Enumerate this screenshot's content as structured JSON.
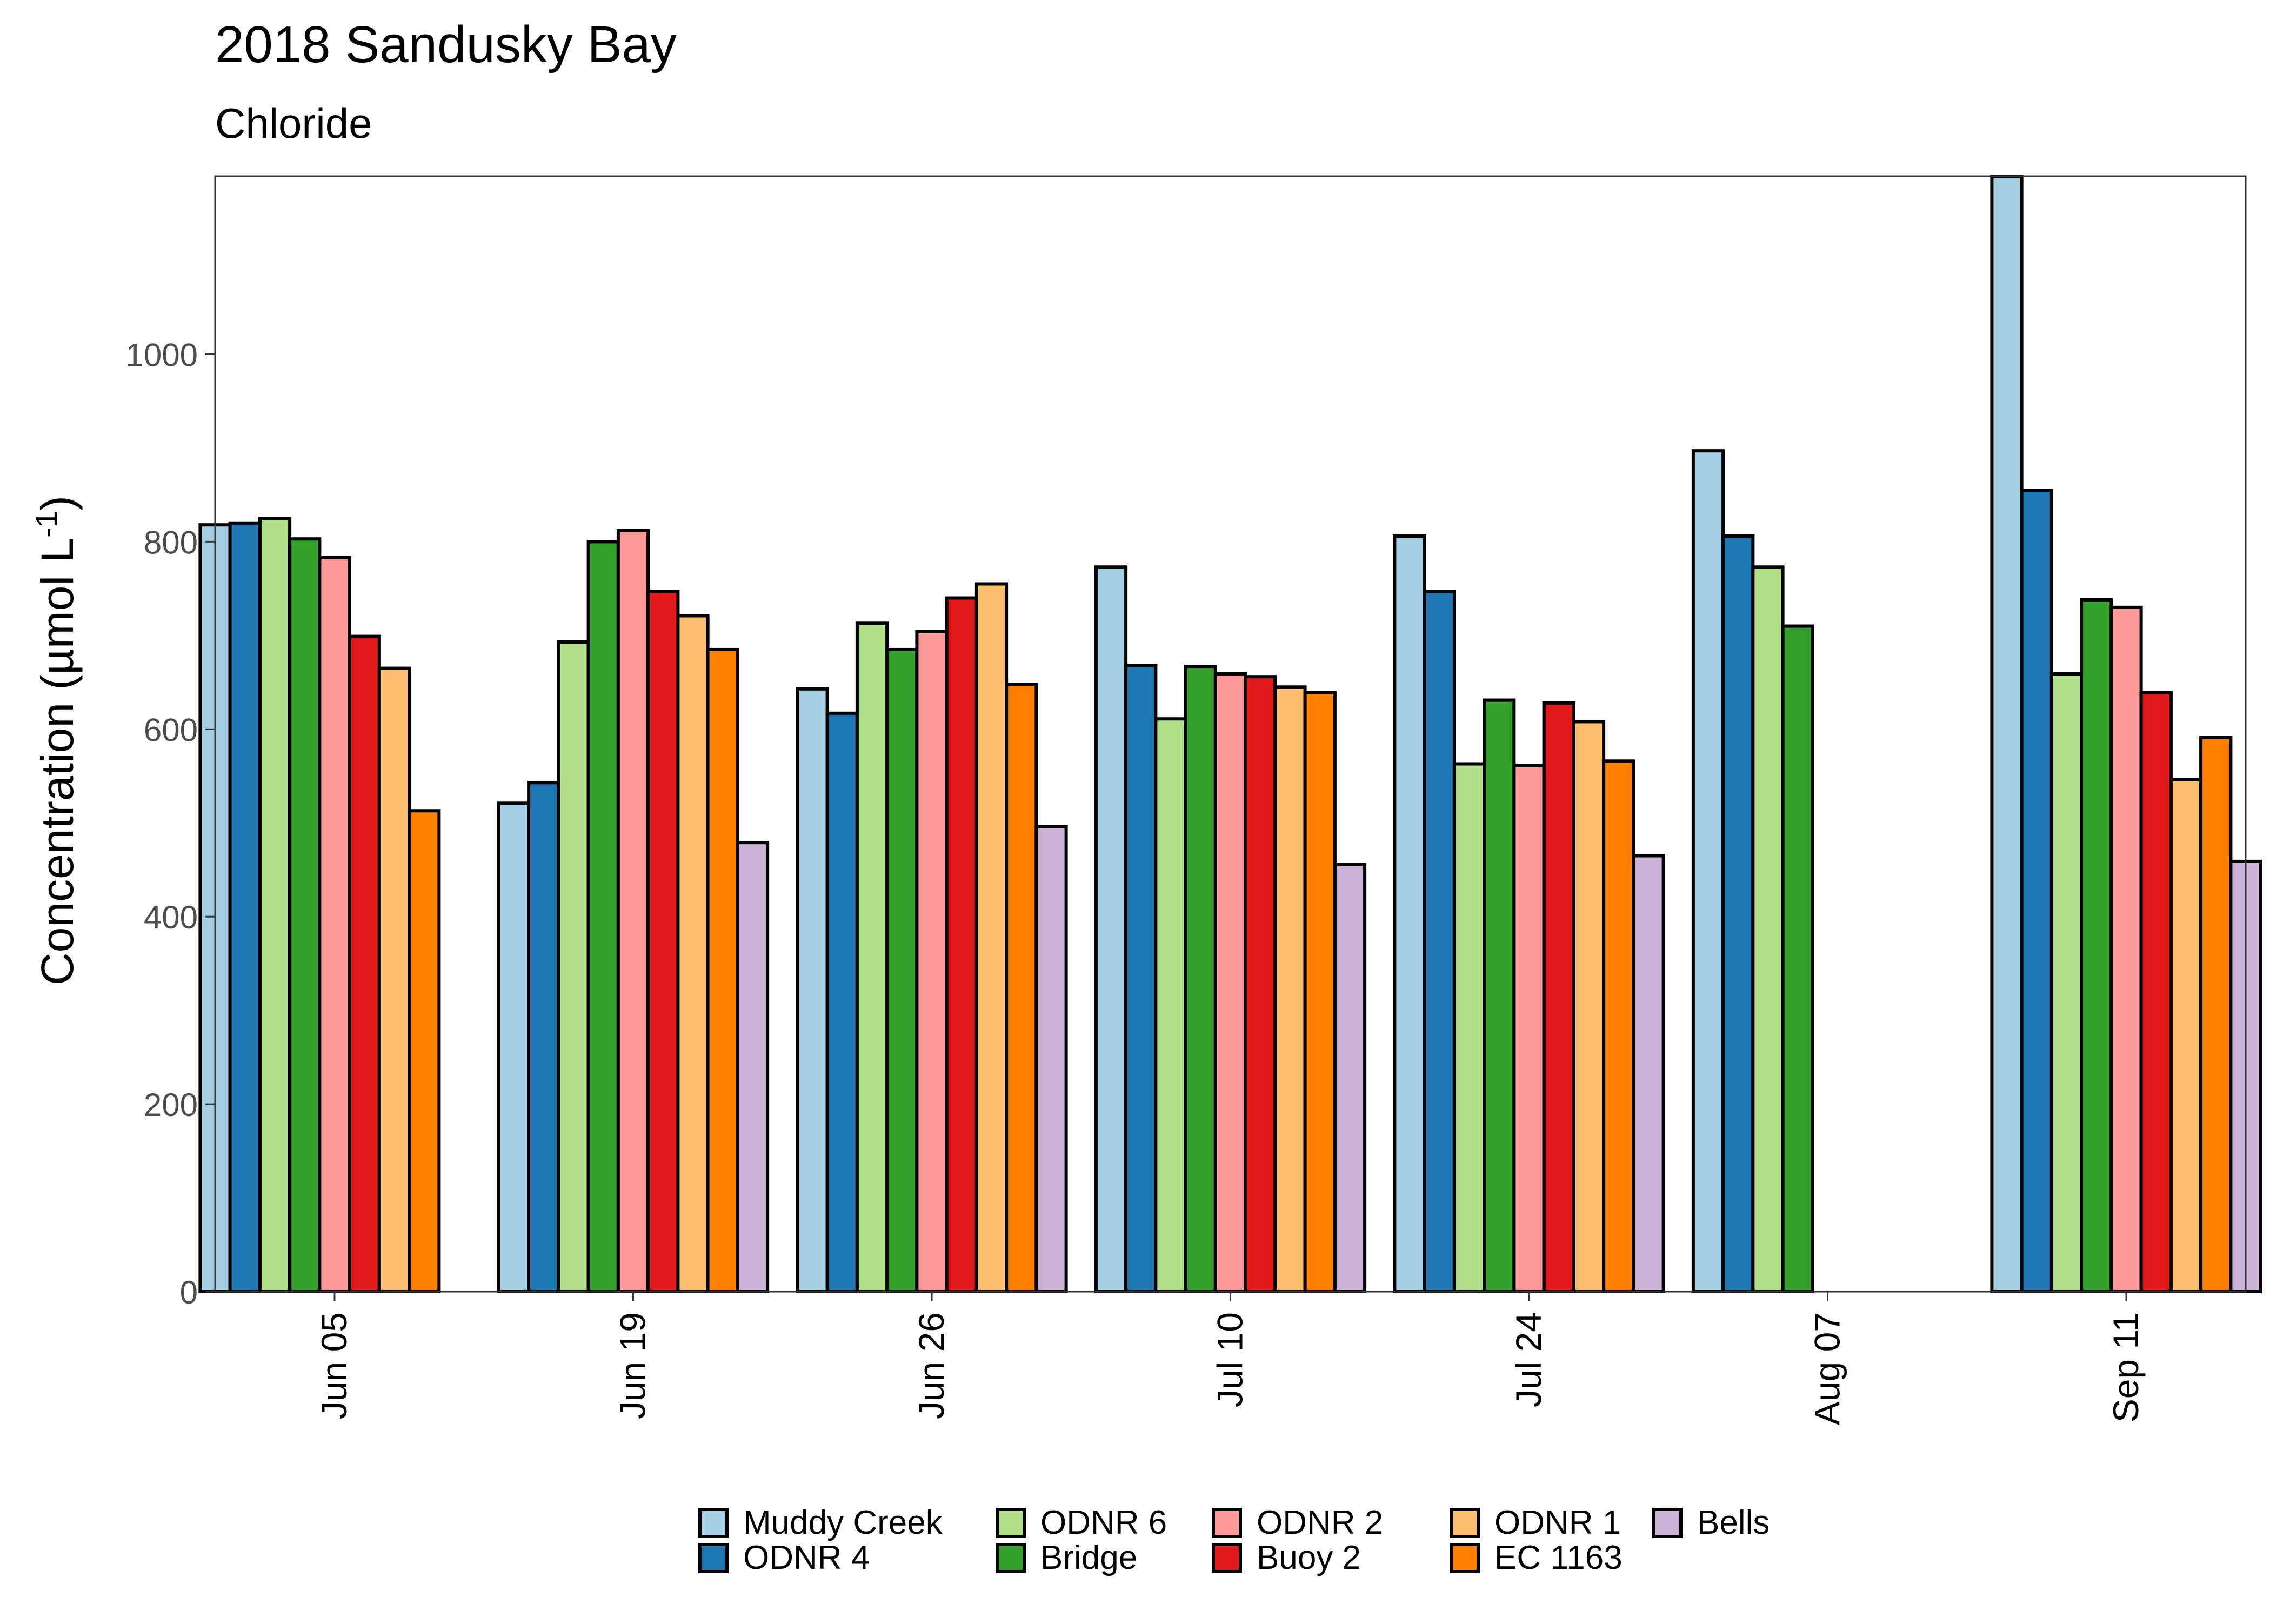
{
  "chart_data": {
    "type": "bar",
    "title": "2018 Sandusky Bay",
    "subtitle": "Chloride",
    "ylabel": "Concentration (µmol L",
    "ylabel_sup": "-1",
    "ylabel_end": ")",
    "xlabel": "",
    "ylim": [
      0,
      1190
    ],
    "yticks": [
      0,
      200,
      400,
      600,
      800,
      1000
    ],
    "grid": false,
    "legend_position": "bottom",
    "categories": [
      "Jun 05",
      "Jun 19",
      "Jun 26",
      "Jul 10",
      "Jul 24",
      "Aug 07",
      "Sep 11"
    ],
    "series": [
      {
        "name": "Muddy Creek",
        "color": "#A6CEE3",
        "values": [
          818,
          521,
          643,
          773,
          806,
          897,
          1190
        ]
      },
      {
        "name": "ODNR 4",
        "color": "#1F78B4",
        "values": [
          820,
          543,
          617,
          668,
          747,
          806,
          855
        ]
      },
      {
        "name": "ODNR 6",
        "color": "#B2DF8A",
        "values": [
          825,
          693,
          713,
          611,
          563,
          773,
          659
        ]
      },
      {
        "name": "Bridge",
        "color": "#33A02C",
        "values": [
          803,
          800,
          685,
          667,
          631,
          710,
          738
        ]
      },
      {
        "name": "ODNR 2",
        "color": "#FB9A99",
        "values": [
          783,
          812,
          704,
          659,
          561,
          null,
          730
        ]
      },
      {
        "name": "Buoy 2",
        "color": "#E31A1C",
        "values": [
          699,
          747,
          740,
          656,
          628,
          null,
          639
        ]
      },
      {
        "name": "ODNR 1",
        "color": "#FDBF6F",
        "values": [
          665,
          721,
          755,
          645,
          608,
          null,
          546
        ]
      },
      {
        "name": "EC 1163",
        "color": "#FF7F00",
        "values": [
          513,
          685,
          648,
          639,
          566,
          null,
          591
        ]
      },
      {
        "name": "Bells",
        "color": "#CAB2D6",
        "values": [
          null,
          479,
          496,
          456,
          465,
          null,
          459
        ]
      }
    ]
  }
}
